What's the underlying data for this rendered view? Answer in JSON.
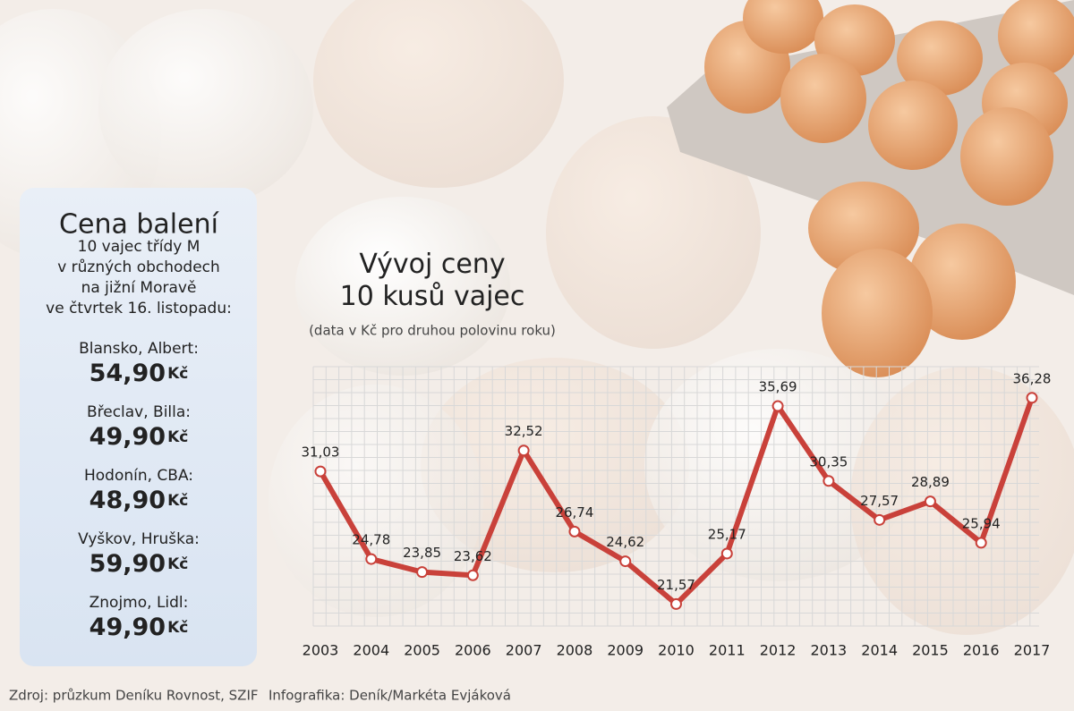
{
  "chart_data": {
    "type": "line",
    "title": "Vývoj ceny 10 kusů vajec",
    "subtitle": "(data v Kč pro druhou polovinu roku)",
    "categories": [
      "2003",
      "2004",
      "2005",
      "2006",
      "2007",
      "2008",
      "2009",
      "2010",
      "2011",
      "2012",
      "2013",
      "2014",
      "2015",
      "2016",
      "2017"
    ],
    "values": [
      31.03,
      24.78,
      23.85,
      23.62,
      32.52,
      26.74,
      24.62,
      21.57,
      25.17,
      35.69,
      30.35,
      27.57,
      28.89,
      25.94,
      36.28
    ],
    "value_labels": [
      "31,03",
      "24,78",
      "23,85",
      "23,62",
      "32,52",
      "26,74",
      "24,62",
      "21,57",
      "25,17",
      "35,69",
      "30,35",
      "27,57",
      "28,89",
      "25,94",
      "36,28"
    ],
    "color": "#c9413a",
    "ylim": [
      20,
      38.5
    ],
    "grid": true
  },
  "panel": {
    "title": "Cena balení",
    "subtitle": [
      "10 vajec třídy M",
      "v různých obchodech",
      "na jižní Moravě",
      "ve čtvrtek 16. listopadu:"
    ],
    "items": [
      {
        "store": "Blansko, Albert:",
        "price": "54,90",
        "unit": "Kč"
      },
      {
        "store": "Břeclav, Billa:",
        "price": "49,90",
        "unit": "Kč"
      },
      {
        "store": "Hodonín, CBA:",
        "price": "48,90",
        "unit": "Kč"
      },
      {
        "store": "Vyškov, Hruška:",
        "price": "59,90",
        "unit": "Kč"
      },
      {
        "store": "Znojmo, Lidl:",
        "price": "49,90",
        "unit": "Kč"
      }
    ]
  },
  "footer": {
    "source": "Zdroj: průzkum Deníku Rovnost, SZIF",
    "credit": "Infografika: Deník/Markéta Evjáková"
  }
}
